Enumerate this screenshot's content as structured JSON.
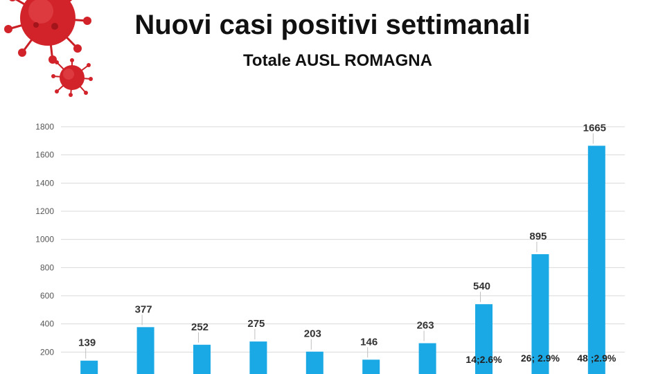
{
  "header": {
    "title": "Nuovi casi positivi settimanali",
    "subtitle": "Totale AUSL ROMAGNA"
  },
  "decor": {
    "virus_icon": "virus-icon",
    "virus_color": "#d2232a"
  },
  "chart_data": {
    "type": "bar",
    "values": [
      139,
      377,
      252,
      275,
      203,
      146,
      263,
      540,
      895,
      1665
    ],
    "ylim": [
      0,
      1800
    ],
    "yticks": [
      200,
      400,
      600,
      800,
      1000,
      1200,
      1400,
      1600,
      1800
    ],
    "grid": true,
    "bar_color": "#1aa9e5",
    "annotations": [
      {
        "bar_index": 7,
        "text": "14;2.6%"
      },
      {
        "bar_index": 8,
        "text": "26; 2.9%"
      },
      {
        "bar_index": 9,
        "text": "48 ;2.9%"
      }
    ]
  }
}
